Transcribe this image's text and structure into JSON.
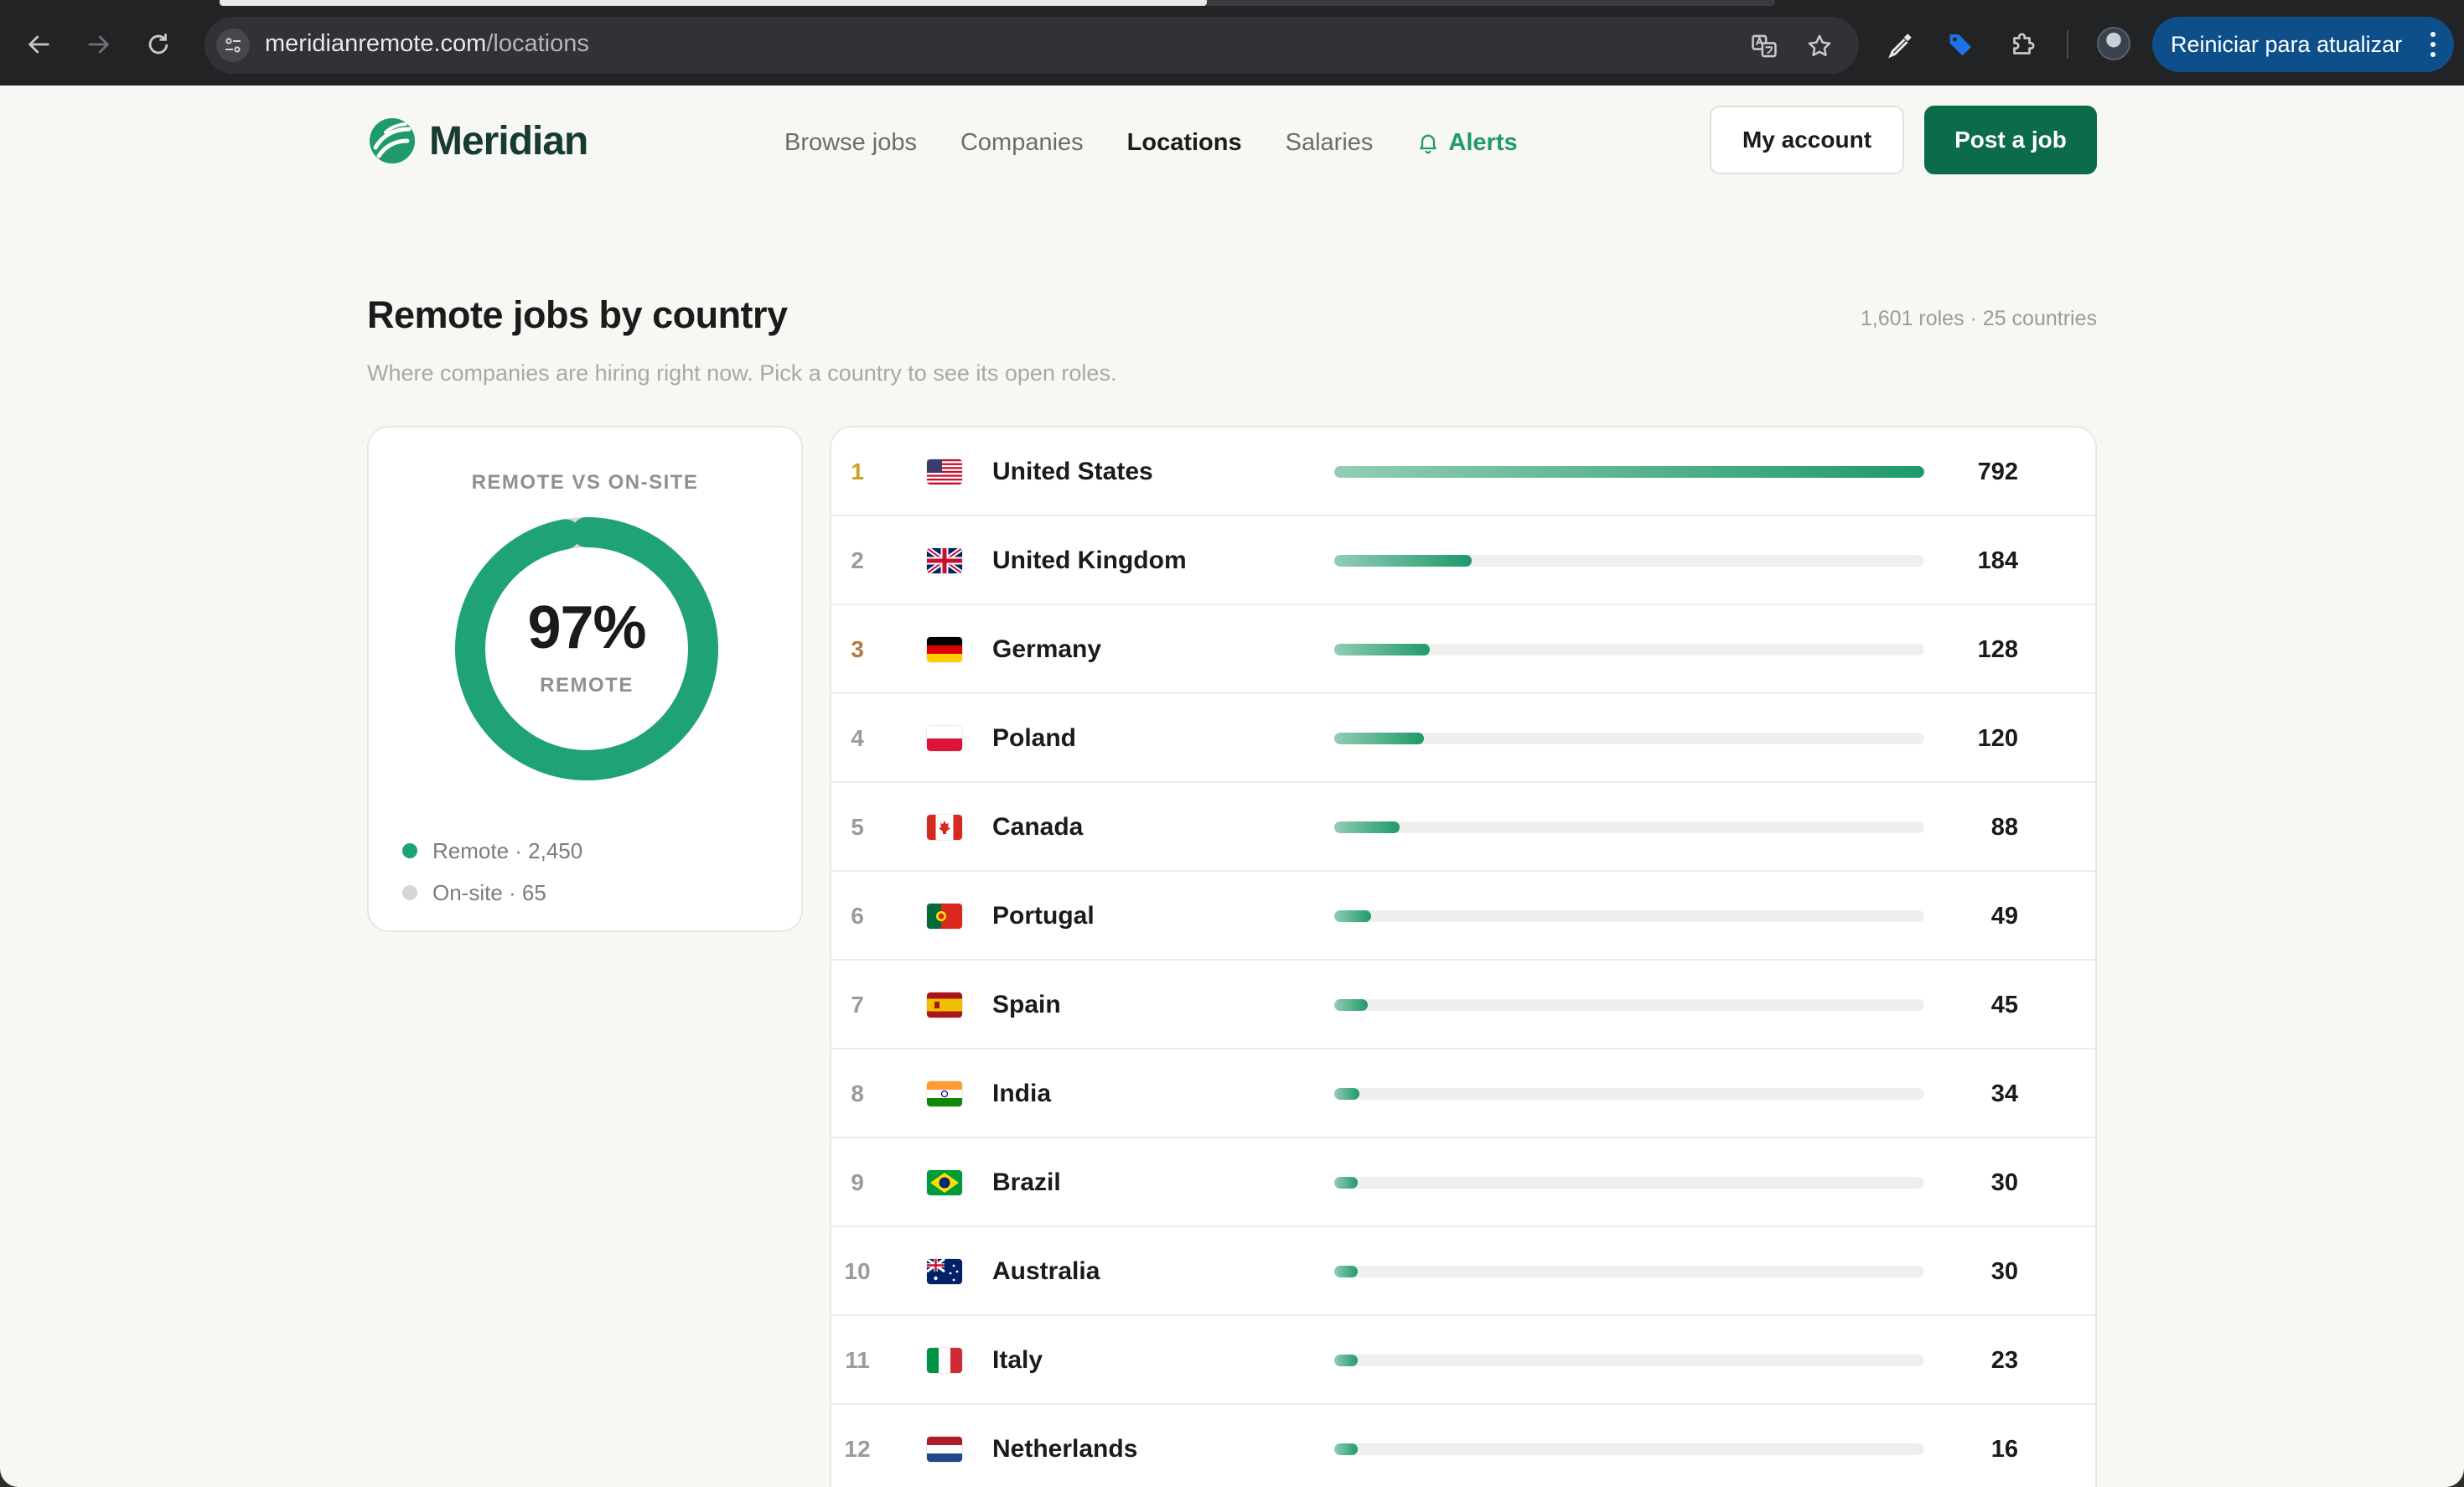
{
  "browser": {
    "url_host": "meridianremote.com",
    "url_path": "/locations",
    "update_button": "Reiniciar para atualizar"
  },
  "site": {
    "logo_text": "Meridian",
    "nav": {
      "browse_jobs": "Browse jobs",
      "companies": "Companies",
      "locations": "Locations",
      "salaries": "Salaries",
      "alerts": "Alerts"
    },
    "my_account": "My account",
    "post_job": "Post a job"
  },
  "section": {
    "title": "Remote jobs by country",
    "subtitle": "Where companies are hiring right now. Pick a country to see its open roles.",
    "meta": "1,601 roles · 25 countries"
  },
  "remote_split": {
    "label": "REMOTE VS ON-SITE",
    "percent_text": "97%",
    "percent_value": 97,
    "caption": "REMOTE",
    "legend": [
      {
        "text": "Remote · 2,450",
        "color": "#1fa276"
      },
      {
        "text": "On-site · 65",
        "color": "#d6d6d3"
      }
    ]
  },
  "colors": {
    "accent": "#1fa276",
    "brand_dark": "#0c6b4a",
    "gold": "#c9a227",
    "bronze": "#b87844"
  },
  "countries": [
    {
      "rank": "1",
      "name": "United States",
      "count": 792,
      "flag": "us-flag-icon"
    },
    {
      "rank": "2",
      "name": "United Kingdom",
      "count": 184,
      "flag": "gb-flag-icon"
    },
    {
      "rank": "3",
      "name": "Germany",
      "count": 128,
      "flag": "de-flag-icon"
    },
    {
      "rank": "4",
      "name": "Poland",
      "count": 120,
      "flag": "pl-flag-icon"
    },
    {
      "rank": "5",
      "name": "Canada",
      "count": 88,
      "flag": "ca-flag-icon"
    },
    {
      "rank": "6",
      "name": "Portugal",
      "count": 49,
      "flag": "pt-flag-icon"
    },
    {
      "rank": "7",
      "name": "Spain",
      "count": 45,
      "flag": "es-flag-icon"
    },
    {
      "rank": "8",
      "name": "India",
      "count": 34,
      "flag": "in-flag-icon"
    },
    {
      "rank": "9",
      "name": "Brazil",
      "count": 30,
      "flag": "br-flag-icon"
    },
    {
      "rank": "10",
      "name": "Australia",
      "count": 30,
      "flag": "au-flag-icon"
    },
    {
      "rank": "11",
      "name": "Italy",
      "count": 23,
      "flag": "it-flag-icon"
    },
    {
      "rank": "12",
      "name": "Netherlands",
      "count": 16,
      "flag": "nl-flag-icon"
    }
  ]
}
